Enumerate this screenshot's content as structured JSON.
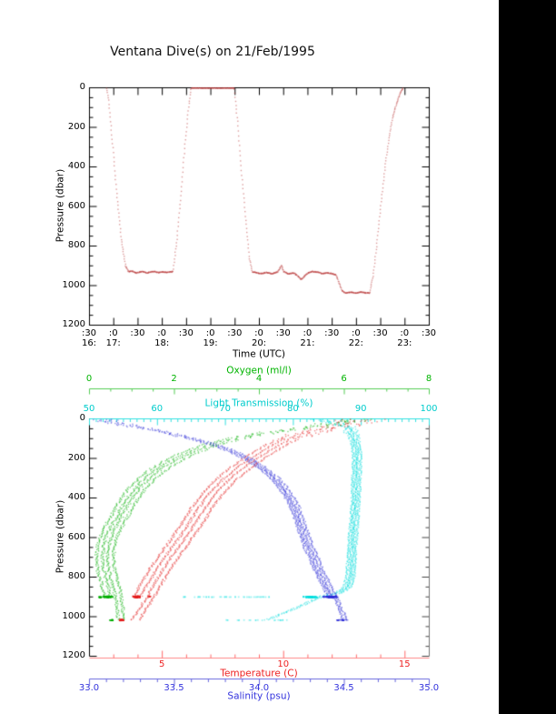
{
  "title": "Ventana Dive(s) on 21/Feb/1995",
  "colors": {
    "background": "#ffffff",
    "window_right_fill": "#000000",
    "axis_black": "#000000",
    "green": "#00b400",
    "cyan": "#00cccc",
    "cyan_line": "#33e0e0",
    "red": "#ee2222",
    "red_line": "#ff8a8a",
    "blue": "#3333dd",
    "trace_red": "#b84444"
  },
  "chart_data": [
    {
      "id": "dive-depth-timeseries",
      "type": "line",
      "title": "Ventana Dive(s) on 21/Feb/1995",
      "xlabel": "Time (UTC)",
      "ylabel": "Pressure (dbar)",
      "x_range_hours": [
        16.5,
        23.5
      ],
      "y_range": [
        0,
        1200
      ],
      "y_axis_reversed": true,
      "grid": false,
      "y_ticks": [
        "0",
        "200",
        "400",
        "600",
        "800",
        "1000",
        "1200"
      ],
      "x_ticks": [
        {
          "m": ":30",
          "h": "16:"
        },
        {
          "m": ":0",
          "h": "17:"
        },
        {
          "m": ":30",
          "h": ""
        },
        {
          "m": ":0",
          "h": "18:"
        },
        {
          "m": ":30",
          "h": ""
        },
        {
          "m": ":0",
          "h": "19:"
        },
        {
          "m": ":30",
          "h": ""
        },
        {
          "m": ":0",
          "h": "20:"
        },
        {
          "m": ":30",
          "h": ""
        },
        {
          "m": ":0",
          "h": "21:"
        },
        {
          "m": ":30",
          "h": ""
        },
        {
          "m": ":0",
          "h": "22:"
        },
        {
          "m": ":30",
          "h": ""
        },
        {
          "m": ":0",
          "h": "23:"
        },
        {
          "m": ":30",
          "h": ""
        }
      ],
      "points": [
        [
          16.85,
          0
        ],
        [
          16.89,
          60
        ],
        [
          16.97,
          280
        ],
        [
          17.06,
          540
        ],
        [
          17.15,
          760
        ],
        [
          17.24,
          900
        ],
        [
          17.3,
          928
        ],
        [
          17.38,
          926
        ],
        [
          17.46,
          936
        ],
        [
          17.53,
          930
        ],
        [
          17.6,
          928
        ],
        [
          17.68,
          936
        ],
        [
          17.76,
          930
        ],
        [
          17.84,
          928
        ],
        [
          17.92,
          934
        ],
        [
          18.0,
          930
        ],
        [
          18.08,
          932
        ],
        [
          18.16,
          930
        ],
        [
          18.22,
          928
        ],
        [
          18.3,
          760
        ],
        [
          18.38,
          540
        ],
        [
          18.46,
          300
        ],
        [
          18.54,
          90
        ],
        [
          18.59,
          0
        ],
        [
          19.48,
          0
        ],
        [
          19.55,
          180
        ],
        [
          19.63,
          430
        ],
        [
          19.71,
          660
        ],
        [
          19.79,
          860
        ],
        [
          19.85,
          930
        ],
        [
          19.95,
          935
        ],
        [
          20.05,
          938
        ],
        [
          20.15,
          932
        ],
        [
          20.25,
          940
        ],
        [
          20.38,
          930
        ],
        [
          20.45,
          898
        ],
        [
          20.5,
          928
        ],
        [
          20.6,
          940
        ],
        [
          20.7,
          935
        ],
        [
          20.78,
          948
        ],
        [
          20.86,
          968
        ],
        [
          20.93,
          950
        ],
        [
          21.0,
          935
        ],
        [
          21.1,
          928
        ],
        [
          21.2,
          932
        ],
        [
          21.3,
          938
        ],
        [
          21.4,
          935
        ],
        [
          21.5,
          940
        ],
        [
          21.58,
          945
        ],
        [
          21.64,
          985
        ],
        [
          21.7,
          1025
        ],
        [
          21.78,
          1037
        ],
        [
          21.88,
          1033
        ],
        [
          21.98,
          1037
        ],
        [
          22.08,
          1032
        ],
        [
          22.18,
          1036
        ],
        [
          22.27,
          1037
        ],
        [
          22.34,
          950
        ],
        [
          22.42,
          780
        ],
        [
          22.5,
          590
        ],
        [
          22.58,
          410
        ],
        [
          22.66,
          260
        ],
        [
          22.74,
          150
        ],
        [
          22.82,
          80
        ],
        [
          22.9,
          25
        ],
        [
          22.96,
          0
        ]
      ]
    },
    {
      "id": "ctd-profiles",
      "type": "scatter",
      "ylabel": "Pressure (dbar)",
      "y_range": [
        0,
        1200
      ],
      "y_axis_reversed": true,
      "grid": false,
      "y_ticks": [
        "0",
        "200",
        "400",
        "600",
        "800",
        "1000",
        "1200"
      ],
      "series": [
        {
          "name": "Oxygen (ml/l)",
          "key": "oxygen",
          "color": "#00b400",
          "axis_range": [
            0,
            8
          ],
          "ticks": [
            "0",
            "2",
            "4",
            "6",
            "8"
          ],
          "cast_offsets": [
            -0.1,
            0.04,
            0.16,
            0.3
          ],
          "jitter": 0.04,
          "surface_scatter": 0.35,
          "profile": [
            [
              0,
              6.2
            ],
            [
              15,
              5.9
            ],
            [
              30,
              5.5
            ],
            [
              50,
              4.8
            ],
            [
              75,
              3.9
            ],
            [
              100,
              3.3
            ],
            [
              125,
              2.85
            ],
            [
              150,
              2.5
            ],
            [
              175,
              2.2
            ],
            [
              200,
              1.95
            ],
            [
              250,
              1.55
            ],
            [
              300,
              1.25
            ],
            [
              350,
              1.02
            ],
            [
              400,
              0.85
            ],
            [
              450,
              0.7
            ],
            [
              500,
              0.58
            ],
            [
              550,
              0.44
            ],
            [
              600,
              0.34
            ],
            [
              650,
              0.28
            ],
            [
              700,
              0.26
            ],
            [
              750,
              0.28
            ],
            [
              800,
              0.33
            ],
            [
              850,
              0.4
            ],
            [
              900,
              0.45
            ],
            [
              960,
              0.48
            ],
            [
              1016,
              0.52
            ]
          ]
        },
        {
          "name": "Light Transmission (%)",
          "key": "light",
          "color": "#00cccc",
          "axis_range": [
            50,
            100
          ],
          "ticks": [
            "50",
            "60",
            "70",
            "80",
            "90",
            "100"
          ],
          "cast_offsets": [
            -0.4,
            0,
            0.3,
            0.7
          ],
          "jitter": 0.18,
          "surface_scatter": 1.2,
          "profile": [
            [
              0,
              83.5
            ],
            [
              10,
              84.5
            ],
            [
              20,
              86
            ],
            [
              40,
              87.5
            ],
            [
              60,
              88.3
            ],
            [
              100,
              88.8
            ],
            [
              150,
              89.1
            ],
            [
              200,
              89.2
            ],
            [
              300,
              89.1
            ],
            [
              400,
              89
            ],
            [
              500,
              88.8
            ],
            [
              600,
              88.6
            ],
            [
              700,
              88.4
            ],
            [
              800,
              88.2
            ],
            [
              850,
              87.8
            ],
            [
              880,
              86.5
            ],
            [
              900,
              83.5
            ],
            [
              960,
              79.5
            ],
            [
              1016,
              75.5
            ]
          ]
        },
        {
          "name": "Temperature (C)",
          "key": "temperature",
          "color": "#ee2222",
          "axis_range": [
            2,
            16
          ],
          "ticks": [
            "5",
            "10",
            "15"
          ],
          "cast_offsets": [
            -0.1,
            0.18,
            0.45,
            0.75
          ],
          "jitter": 0.06,
          "surface_scatter": 0.6,
          "profile": [
            [
              0,
              12.9
            ],
            [
              15,
              12.6
            ],
            [
              30,
              12.1
            ],
            [
              50,
              11.3
            ],
            [
              75,
              10.5
            ],
            [
              100,
              9.9
            ],
            [
              125,
              9.45
            ],
            [
              150,
              9.1
            ],
            [
              175,
              8.75
            ],
            [
              200,
              8.45
            ],
            [
              250,
              7.85
            ],
            [
              300,
              7.35
            ],
            [
              350,
              6.95
            ],
            [
              400,
              6.6
            ],
            [
              450,
              6.3
            ],
            [
              500,
              6.05
            ],
            [
              550,
              5.78
            ],
            [
              600,
              5.5
            ],
            [
              650,
              5.2
            ],
            [
              700,
              4.9
            ],
            [
              750,
              4.62
            ],
            [
              800,
              4.38
            ],
            [
              850,
              4.12
            ],
            [
              900,
              3.92
            ],
            [
              960,
              3.58
            ],
            [
              1016,
              3.28
            ]
          ]
        },
        {
          "name": "Salinity (psu)",
          "key": "salinity",
          "color": "#3333dd",
          "axis_range": [
            33,
            35
          ],
          "ticks": [
            "33.0",
            "33.5",
            "34.0",
            "34.5",
            "35.0"
          ],
          "cast_offsets": [
            -0.015,
            0,
            0.015,
            0.035
          ],
          "jitter": 0.008,
          "surface_scatter": 0.06,
          "profile": [
            [
              0,
              33.07
            ],
            [
              15,
              33.12
            ],
            [
              30,
              33.2
            ],
            [
              50,
              33.33
            ],
            [
              75,
              33.47
            ],
            [
              100,
              33.6
            ],
            [
              125,
              33.7
            ],
            [
              150,
              33.79
            ],
            [
              175,
              33.86
            ],
            [
              200,
              33.92
            ],
            [
              250,
              34.01
            ],
            [
              300,
              34.08
            ],
            [
              350,
              34.13
            ],
            [
              400,
              34.17
            ],
            [
              450,
              34.2
            ],
            [
              500,
              34.22
            ],
            [
              550,
              34.24
            ],
            [
              600,
              34.26
            ],
            [
              650,
              34.28
            ],
            [
              700,
              34.31
            ],
            [
              750,
              34.33
            ],
            [
              800,
              34.36
            ],
            [
              850,
              34.39
            ],
            [
              900,
              34.42
            ],
            [
              960,
              34.45
            ],
            [
              1016,
              34.48
            ]
          ]
        }
      ],
      "cast_max_pressures": [
        900,
        900,
        1016,
        1016
      ],
      "deep_scatter": [
        {
          "series": "oxygen",
          "p": 898,
          "v": 0.42,
          "sv": 0.14,
          "sp": 4,
          "n": 90
        },
        {
          "series": "oxygen",
          "p": 900,
          "v": 0.24,
          "sv": 0.05,
          "sp": 2,
          "n": 12
        },
        {
          "series": "temperature",
          "p": 898,
          "v": 3.95,
          "sv": 0.22,
          "sp": 4,
          "n": 95
        },
        {
          "series": "temperature",
          "p": 897,
          "v": 4.45,
          "sv": 0.12,
          "sp": 2,
          "n": 10,
          "alpha": 0.45
        },
        {
          "series": "light",
          "p": 899,
          "v": 82.6,
          "sv": 1.5,
          "sp": 3,
          "n": 70
        },
        {
          "series": "light",
          "p": 899,
          "v": 70,
          "sv": 6.5,
          "sp": 1.5,
          "n": 46,
          "alpha": 0.4,
          "uniform": true
        },
        {
          "series": "salinity",
          "p": 898,
          "v": 34.42,
          "sv": 0.05,
          "sp": 4,
          "n": 85
        },
        {
          "series": "temperature",
          "p": 1016,
          "v": 3.3,
          "sv": 0.13,
          "sp": 3,
          "n": 42
        },
        {
          "series": "oxygen",
          "p": 1016,
          "v": 0.52,
          "sv": 0.06,
          "sp": 2,
          "n": 16
        },
        {
          "series": "light",
          "p": 1016,
          "v": 74.5,
          "sv": 4.5,
          "sp": 1.5,
          "n": 22,
          "alpha": 0.4,
          "uniform": true
        },
        {
          "series": "salinity",
          "p": 1016,
          "v": 34.48,
          "sv": 0.035,
          "sp": 2,
          "n": 14
        }
      ]
    }
  ]
}
